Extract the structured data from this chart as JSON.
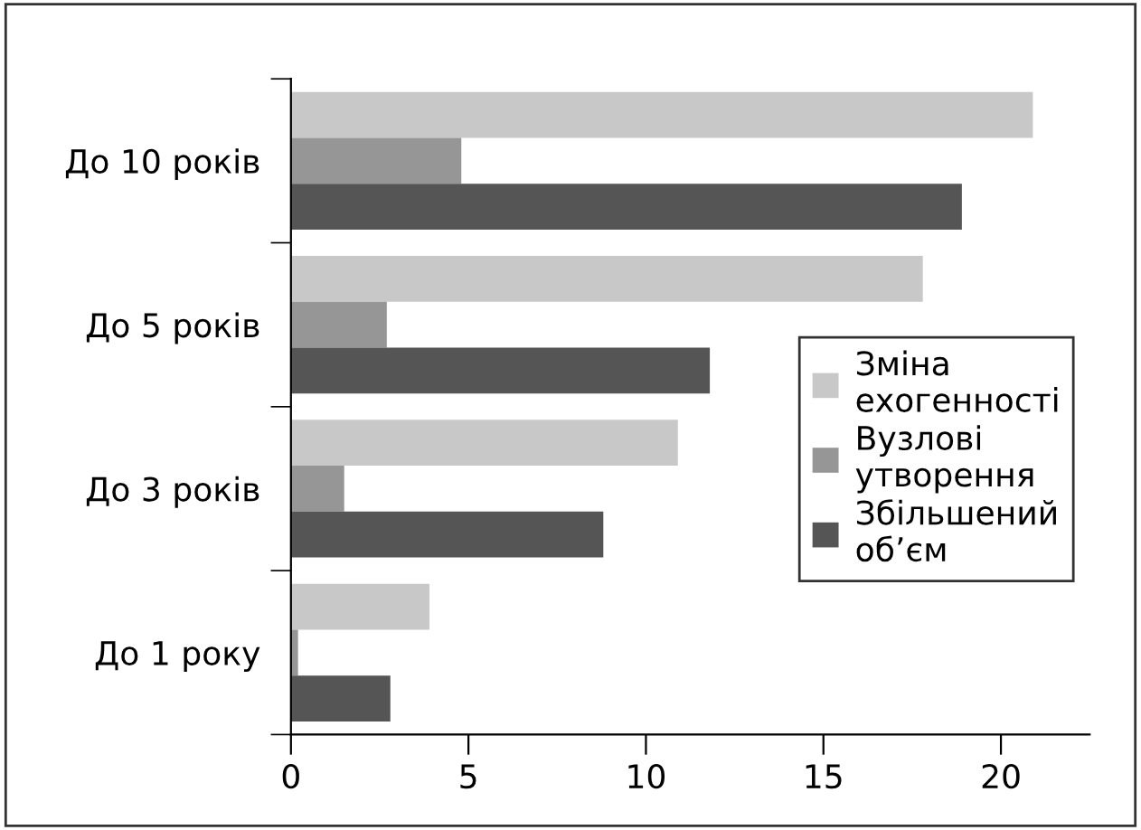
{
  "chart_data": {
    "type": "bar",
    "orientation": "horizontal",
    "categories": [
      "До 10 років",
      "До 5 років",
      "До 3 років",
      "До 1 року"
    ],
    "series": [
      {
        "name": "Зміна\nехогенності",
        "color": "#c8c8c8",
        "values": [
          20.9,
          17.8,
          10.9,
          3.9
        ]
      },
      {
        "name": "Вузлові\nутворення",
        "color": "#969696",
        "values": [
          4.8,
          2.7,
          1.5,
          0.2
        ]
      },
      {
        "name": "Збільшений\nоб’єм",
        "color": "#555555",
        "values": [
          18.9,
          11.8,
          8.8,
          2.8
        ]
      }
    ],
    "xlim": [
      0,
      22.5
    ],
    "xticks": [
      0,
      5,
      10,
      15,
      20
    ],
    "grid": false,
    "legend": "right"
  }
}
